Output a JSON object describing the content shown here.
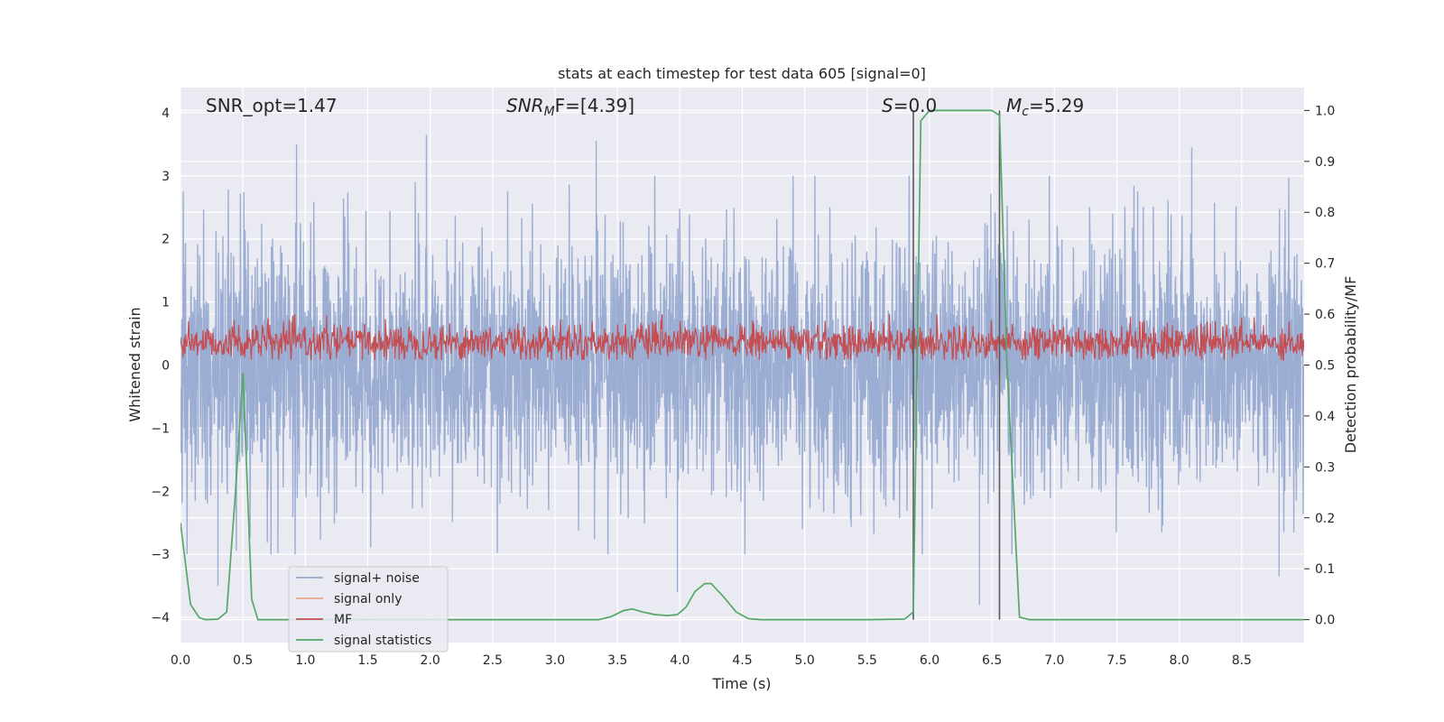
{
  "chart_data": {
    "type": "line",
    "title": "stats at each timestep for test data 605 [signal=0]",
    "xlabel": "Time (s)",
    "ylabel_left": "Whitened strain",
    "ylabel_right": "Detection probability/MF",
    "xlim": [
      0.0,
      9.0
    ],
    "ylim_left": [
      -4.4,
      4.4
    ],
    "ylim_right": [
      -0.045,
      1.045
    ],
    "x_ticks": [
      "0.0",
      "0.5",
      "1.0",
      "1.5",
      "2.0",
      "2.5",
      "3.0",
      "3.5",
      "4.0",
      "4.5",
      "5.0",
      "5.5",
      "6.0",
      "6.5",
      "7.0",
      "7.5",
      "8.0",
      "8.5"
    ],
    "y_ticks_left": [
      "−4",
      "−3",
      "−2",
      "−1",
      "0",
      "1",
      "2",
      "3",
      "4"
    ],
    "y_ticks_right": [
      "0.0",
      "0.1",
      "0.2",
      "0.3",
      "0.4",
      "0.5",
      "0.6",
      "0.7",
      "0.8",
      "0.9",
      "1.0"
    ],
    "grid": true,
    "legend_position": "lower-left",
    "annotations": {
      "snr_opt": "SNR_opt=1.47",
      "snr_mf_main": "SNR",
      "snr_mf_sub": "M",
      "snr_mf_tail": "F=[4.39]",
      "s_var": "S",
      "s_val": "=0.0",
      "mc_var": "M",
      "mc_sub": "c",
      "mc_val": "=5.29"
    },
    "vertical_markers": [
      5.87,
      6.56
    ],
    "series": [
      {
        "name": "signal+ noise",
        "axis": "left",
        "color": "#97aad0",
        "description_of_values": "dense whitened-noise trace, bulk within ±1.6, spikes up to ~3.6 and down to ~-3.8",
        "envelope_dense": [
          -1.6,
          1.6
        ],
        "peak_values": [
          {
            "x": 0.93,
            "y": 3.5
          },
          {
            "x": 1.97,
            "y": 3.65
          },
          {
            "x": 3.33,
            "y": 3.55
          },
          {
            "x": 8.1,
            "y": 3.45
          },
          {
            "x": 3.98,
            "y": -3.6
          },
          {
            "x": 6.4,
            "y": -3.8
          },
          {
            "x": 0.3,
            "y": -3.5
          },
          {
            "x": 8.8,
            "y": -3.35
          }
        ]
      },
      {
        "name": "signal only",
        "axis": "left",
        "color": "#e8a58a",
        "values": []
      },
      {
        "name": "MF",
        "axis": "right",
        "color": "#c44e52",
        "description_of_values": "noisy band centered ~0.54 on right axis, range ~0.51–0.60",
        "center": 0.545,
        "band": [
          0.51,
          0.6
        ]
      },
      {
        "name": "signal statistics",
        "axis": "right",
        "color": "#55a868",
        "x": [
          0.0,
          0.08,
          0.15,
          0.2,
          0.3,
          0.37,
          0.44,
          0.5,
          0.57,
          0.62,
          0.7,
          1.0,
          2.0,
          3.0,
          3.35,
          3.45,
          3.55,
          3.62,
          3.7,
          3.8,
          3.9,
          3.98,
          4.05,
          4.12,
          4.2,
          4.25,
          4.35,
          4.45,
          4.55,
          4.65,
          5.0,
          5.5,
          5.8,
          5.87,
          5.93,
          6.0,
          6.2,
          6.5,
          6.56,
          6.62,
          6.72,
          6.8,
          7.0,
          8.0,
          9.0
        ],
        "y": [
          0.19,
          0.03,
          0.004,
          0.0,
          0.001,
          0.015,
          0.25,
          0.485,
          0.04,
          0.0,
          0.0,
          0.0,
          0.0,
          0.0,
          0.0,
          0.006,
          0.018,
          0.021,
          0.015,
          0.01,
          0.008,
          0.01,
          0.025,
          0.055,
          0.071,
          0.071,
          0.045,
          0.015,
          0.002,
          0.0,
          0.0,
          0.0,
          0.001,
          0.015,
          0.98,
          1.0,
          1.0,
          1.0,
          0.99,
          0.5,
          0.005,
          0.0,
          0.0,
          0.0,
          0.0
        ]
      }
    ]
  }
}
